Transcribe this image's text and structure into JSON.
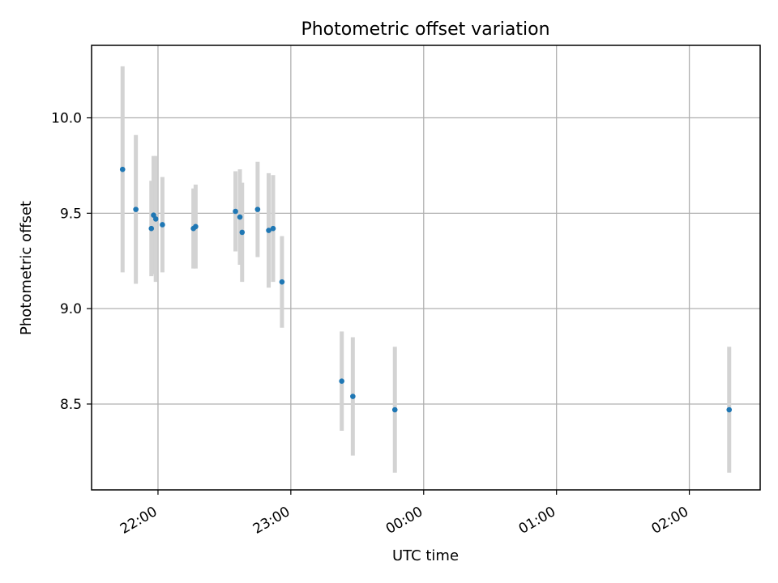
{
  "chart_data": {
    "type": "scatter",
    "title": "Photometric offset variation",
    "xlabel": "UTC time",
    "ylabel": "Photometric offset",
    "x_axis_type": "time",
    "xlim": [
      "21:30",
      "02:32"
    ],
    "ylim": [
      8.05,
      10.38
    ],
    "grid": true,
    "x_ticks": [
      "22:00",
      "23:00",
      "00:00",
      "01:00",
      "02:00"
    ],
    "y_ticks": [
      "8.5",
      "9.0",
      "9.5",
      "10.0"
    ],
    "colors": {
      "marker": "#1f77b4",
      "errorbar": "#d3d3d3",
      "grid": "#b0b0b0"
    },
    "points": [
      {
        "x": "21:44",
        "y": 9.73,
        "err": 0.54
      },
      {
        "x": "21:50",
        "y": 9.52,
        "err": 0.39
      },
      {
        "x": "21:57",
        "y": 9.42,
        "err": 0.25
      },
      {
        "x": "21:58",
        "y": 9.49,
        "err": 0.31
      },
      {
        "x": "21:59",
        "y": 9.47,
        "err": 0.33
      },
      {
        "x": "22:02",
        "y": 9.44,
        "err": 0.25
      },
      {
        "x": "22:16",
        "y": 9.42,
        "err": 0.21
      },
      {
        "x": "22:17",
        "y": 9.43,
        "err": 0.22
      },
      {
        "x": "22:35",
        "y": 9.51,
        "err": 0.21
      },
      {
        "x": "22:37",
        "y": 9.48,
        "err": 0.25
      },
      {
        "x": "22:38",
        "y": 9.4,
        "err": 0.26
      },
      {
        "x": "22:45",
        "y": 9.52,
        "err": 0.25
      },
      {
        "x": "22:50",
        "y": 9.41,
        "err": 0.3
      },
      {
        "x": "22:52",
        "y": 9.42,
        "err": 0.28
      },
      {
        "x": "22:56",
        "y": 9.14,
        "err": 0.24
      },
      {
        "x": "23:23",
        "y": 8.62,
        "err": 0.26
      },
      {
        "x": "23:28",
        "y": 8.54,
        "err": 0.31
      },
      {
        "x": "23:47",
        "y": 8.47,
        "err": 0.33
      },
      {
        "x": "02:18",
        "y": 8.47,
        "err": 0.33
      }
    ]
  }
}
